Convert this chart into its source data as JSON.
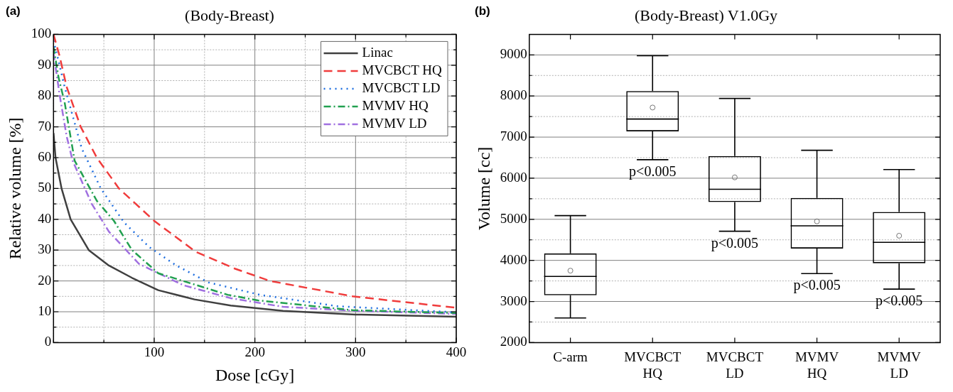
{
  "chart_data": [
    {
      "type": "line",
      "title": "(Body-Breast)",
      "xlabel": "Dose [cGy]",
      "ylabel": "Relative volume [%]",
      "annotations": [
        "(a)"
      ],
      "xlim": [
        0,
        400
      ],
      "xticks": [
        {
          "value": 0,
          "label": null
        },
        {
          "value": 50,
          "label": null
        },
        100,
        {
          "value": 150,
          "label": null
        },
        200,
        {
          "value": 250,
          "label": null
        },
        300,
        {
          "value": 350,
          "label": null
        },
        400
      ],
      "ylim": [
        0,
        100
      ],
      "yticks": [
        0,
        {
          "value": 5,
          "label": null
        },
        10,
        {
          "value": 15,
          "label": null
        },
        20,
        {
          "value": 25,
          "label": null
        },
        30,
        {
          "value": 35,
          "label": null
        },
        40,
        {
          "value": 45,
          "label": null
        },
        50,
        {
          "value": 55,
          "label": null
        },
        60,
        {
          "value": 65,
          "label": null
        },
        70,
        {
          "value": 75,
          "label": null
        },
        80,
        {
          "value": 85,
          "label": null
        },
        90,
        {
          "value": 95,
          "label": null
        },
        100
      ],
      "grid": true,
      "legend": "top right",
      "marker": "none",
      "series": [
        {
          "name": "Linac",
          "color": "#404040",
          "line_style": "solid",
          "x": [
            0,
            2,
            8,
            17,
            35,
            55,
            78,
            104,
            140,
            176,
            228,
            300,
            400
          ],
          "values": [
            68,
            60,
            50,
            40,
            30,
            25,
            21,
            17,
            14,
            12,
            10.3,
            9.1,
            8.4
          ]
        },
        {
          "name": "MVCBCT HQ",
          "color": "#f03c3c",
          "line_style": "dashed",
          "x": [
            0,
            6,
            13,
            27,
            43,
            65,
            100,
            141,
            180,
            215,
            297,
            400
          ],
          "values": [
            100,
            93,
            83,
            70,
            60,
            50,
            39.5,
            29.5,
            24,
            20,
            15,
            11.3
          ]
        },
        {
          "name": "MVCBCT LD",
          "color": "#1f6fe0",
          "line_style": "dotted",
          "x": [
            0,
            6,
            11,
            28,
            47,
            70,
            95,
            122,
            154,
            205,
            282,
            400
          ],
          "values": [
            98,
            90,
            83,
            63,
            50,
            39,
            31,
            25,
            19.5,
            15.5,
            11.8,
            9.8
          ]
        },
        {
          "name": "MVMV HQ",
          "color": "#22a050",
          "line_style": "dashdot",
          "x": [
            0,
            5,
            11,
            21,
            43,
            60,
            78,
            104,
            173,
            203,
            297,
            400
          ],
          "values": [
            96,
            86,
            78,
            59,
            46,
            39.5,
            30,
            22.5,
            15.5,
            13.7,
            10.5,
            9.6
          ]
        },
        {
          "name": "MVMV LD",
          "color": "#a070e0",
          "line_style": "dashdot",
          "x": [
            0,
            6,
            13,
            19,
            38,
            55,
            85,
            129,
            176,
            228,
            300,
            400
          ],
          "values": [
            94,
            80.5,
            67,
            59,
            45,
            36,
            25.5,
            18.6,
            14.4,
            11.6,
            10.3,
            9.3
          ]
        }
      ]
    },
    {
      "type": "box",
      "title": "(Body-Breast) V1.0Gy",
      "ylabel": "Volume [cc]",
      "color": "#000000",
      "annotations": [
        "(b)",
        "p<0.005",
        "p<0.005",
        "p<0.005",
        "p<0.005"
      ],
      "categories": [
        "C-arm",
        "MVCBCT HQ",
        "MVCBCT LD",
        "MVMV HQ",
        "MVMV LD"
      ],
      "ylim": [
        2000,
        9500
      ],
      "yticks": [
        2000,
        {
          "value": 2500,
          "label": null
        },
        3000,
        {
          "value": 3500,
          "label": null
        },
        4000,
        {
          "value": 4500,
          "label": null
        },
        5000,
        {
          "value": 5500,
          "label": null
        },
        6000,
        {
          "value": 6500,
          "label": null
        },
        7000,
        {
          "value": 7500,
          "label": null
        },
        8000,
        {
          "value": 8500,
          "label": null
        },
        9000
      ],
      "grid": true,
      "legend": false,
      "boxes": [
        {
          "low": 2600,
          "q1": 3150,
          "median": 3610,
          "q3": 4170,
          "high": 5090,
          "mean": 3750
        },
        {
          "low": 6450,
          "q1": 7140,
          "median": 7440,
          "q3": 8120,
          "high": 8980,
          "mean": 7720
        },
        {
          "low": 4710,
          "q1": 5420,
          "median": 5730,
          "q3": 6540,
          "high": 7940,
          "mean": 6020
        },
        {
          "low": 3680,
          "q1": 4290,
          "median": 4840,
          "q3": 5520,
          "high": 6680,
          "mean": 4950
        },
        {
          "low": 3300,
          "q1": 3930,
          "median": 4440,
          "q3": 5180,
          "high": 6210,
          "mean": 4600
        }
      ]
    }
  ]
}
